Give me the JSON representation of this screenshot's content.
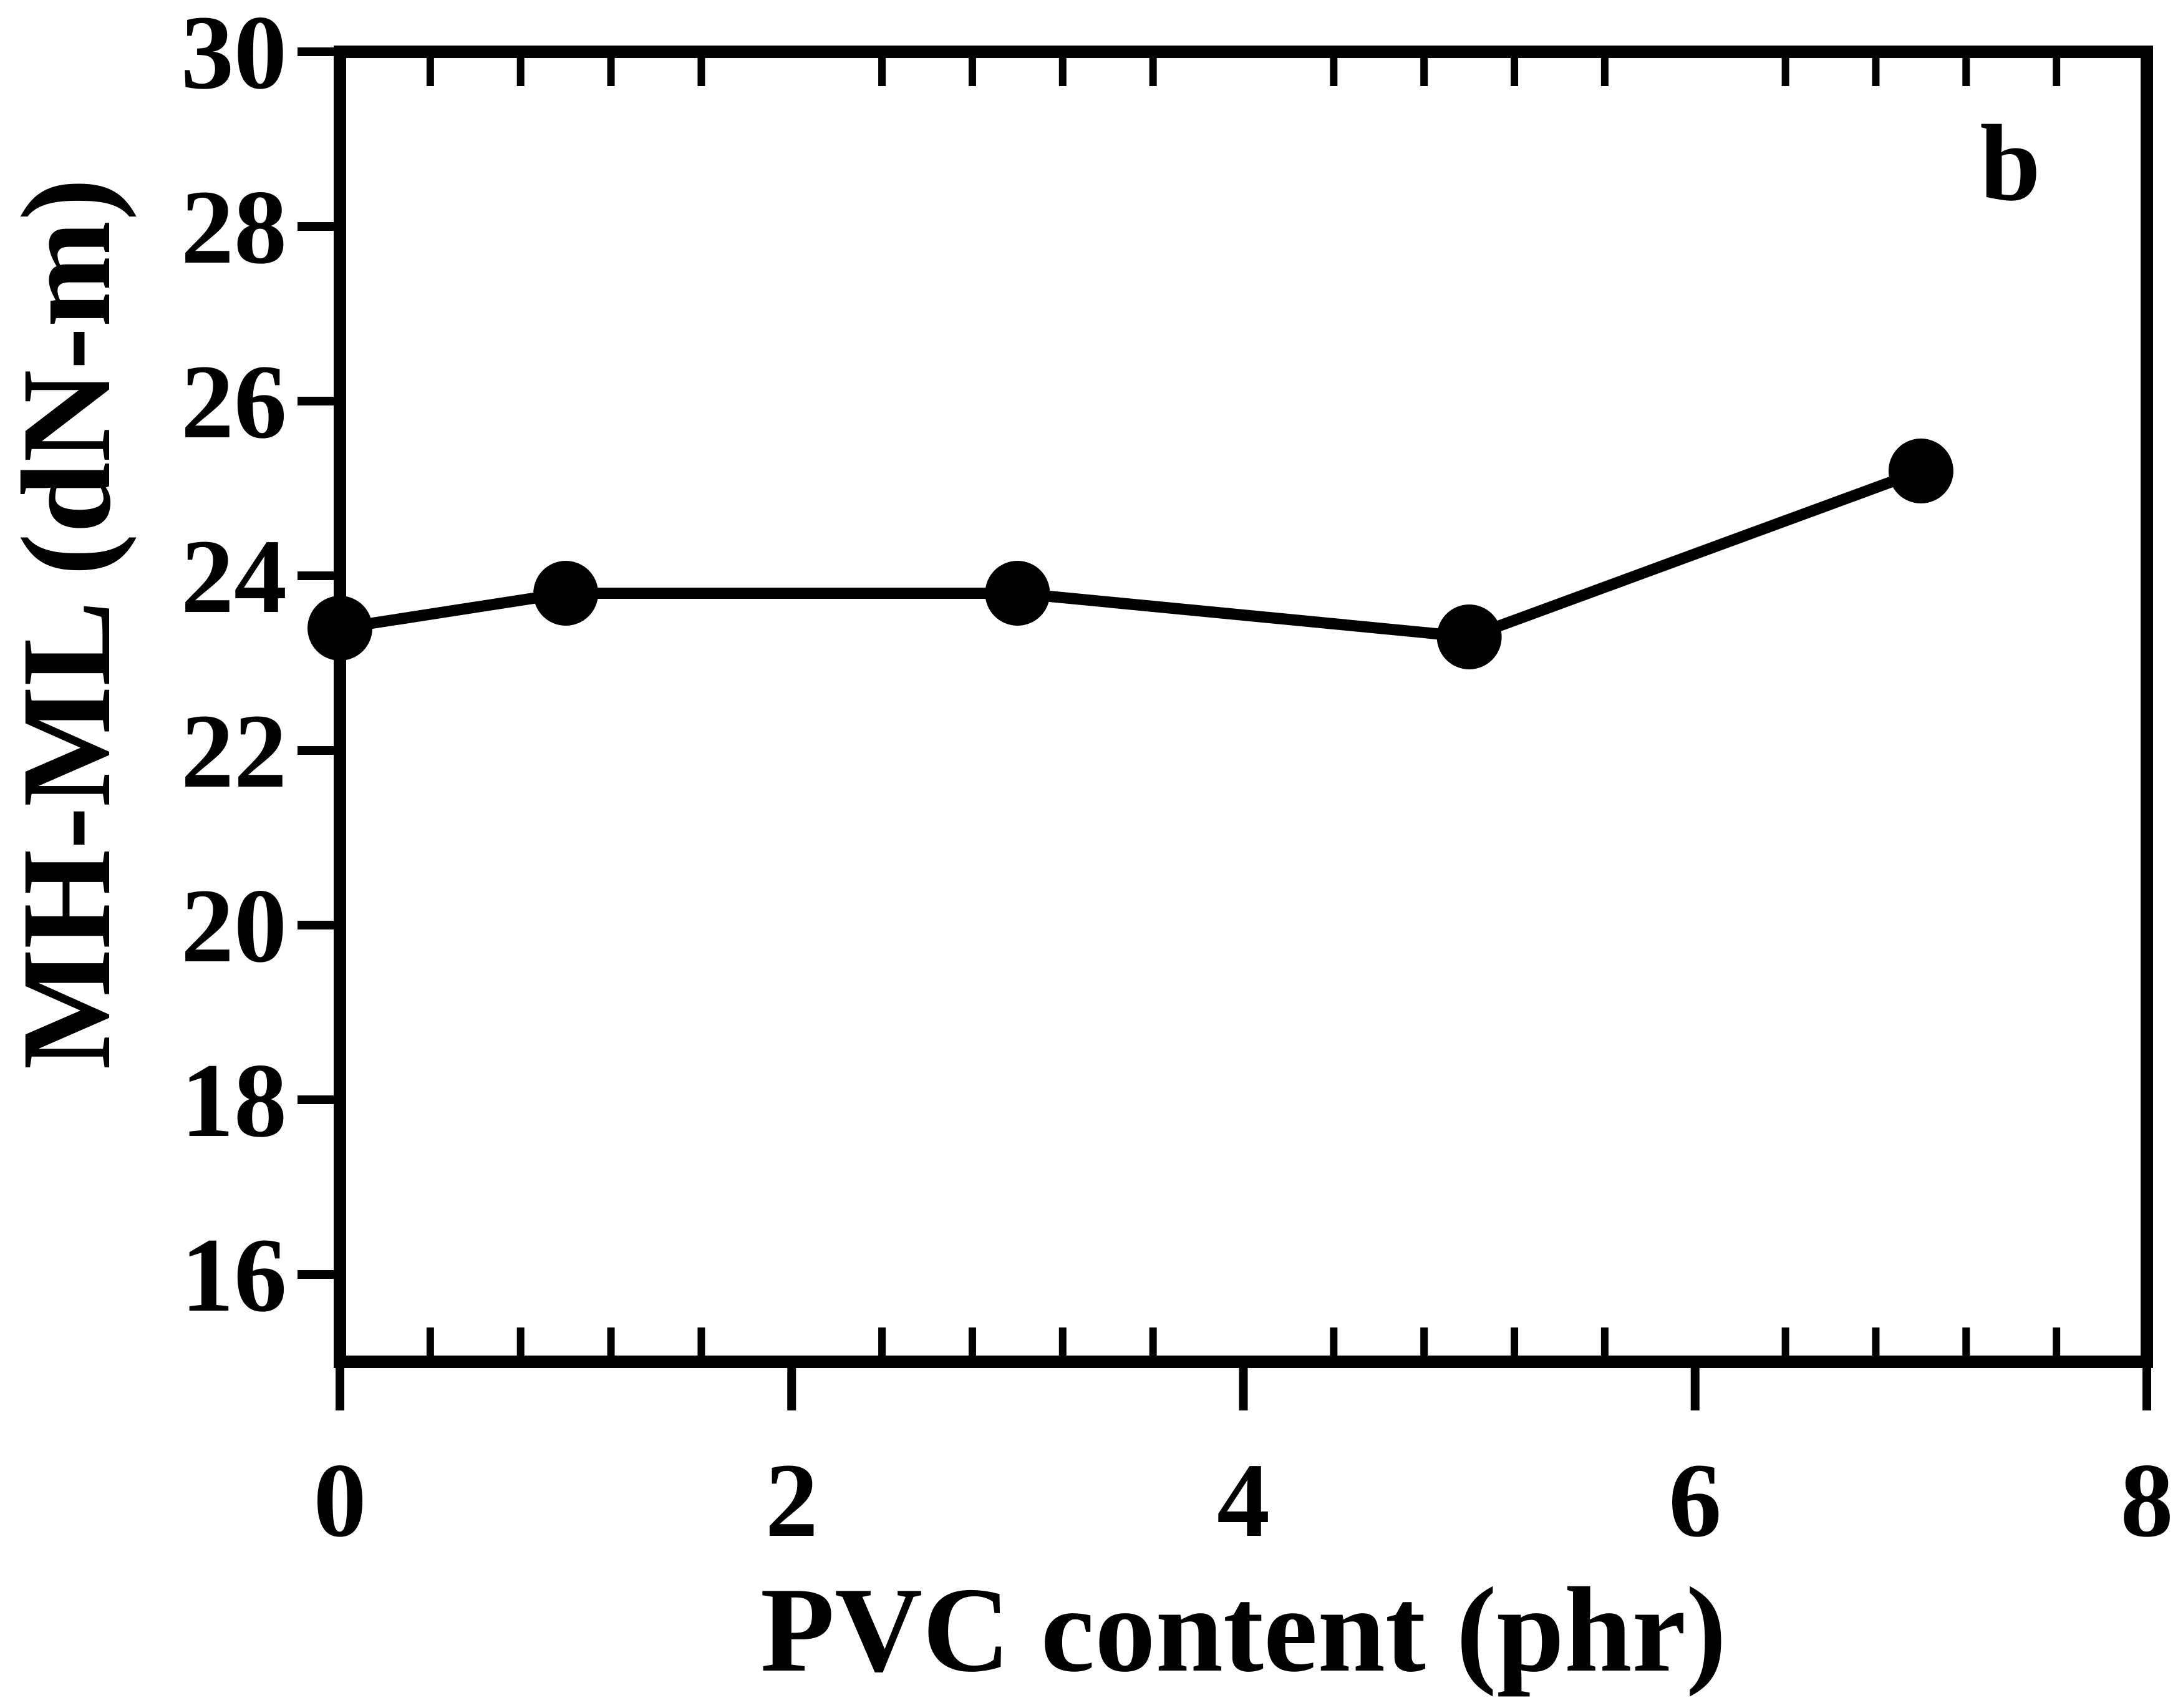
{
  "figure": {
    "panel_label": "b",
    "background_color": "#ffffff",
    "ink_color": "#000000"
  },
  "chart_data": {
    "type": "line",
    "title": "",
    "xlabel": "PVC content (phr)",
    "ylabel": "MH-ML (dN-m)",
    "x": [
      0,
      1,
      3,
      5,
      7
    ],
    "series": [
      {
        "name": "MH-ML",
        "values": [
          23.4,
          23.8,
          23.8,
          23.3,
          25.2
        ]
      }
    ],
    "xlim": [
      0,
      8
    ],
    "ylim": [
      15,
      30
    ],
    "x_major_ticks": [
      0,
      2,
      4,
      6,
      8
    ],
    "x_tick_labels": [
      "0",
      "2",
      "4",
      "6",
      "8"
    ],
    "x_minor_step": 0.4,
    "y_major_ticks": [
      16,
      18,
      20,
      22,
      24,
      26,
      28,
      30
    ],
    "y_tick_labels": [
      "16",
      "18",
      "20",
      "22",
      "24",
      "26",
      "28",
      "30"
    ],
    "grid": false,
    "legend_position": "none",
    "marker": "filled-circle",
    "line_color": "#000000",
    "marker_color": "#000000",
    "annotations": [
      {
        "text": "b",
        "x": 7.4,
        "y": 28.7
      }
    ]
  }
}
